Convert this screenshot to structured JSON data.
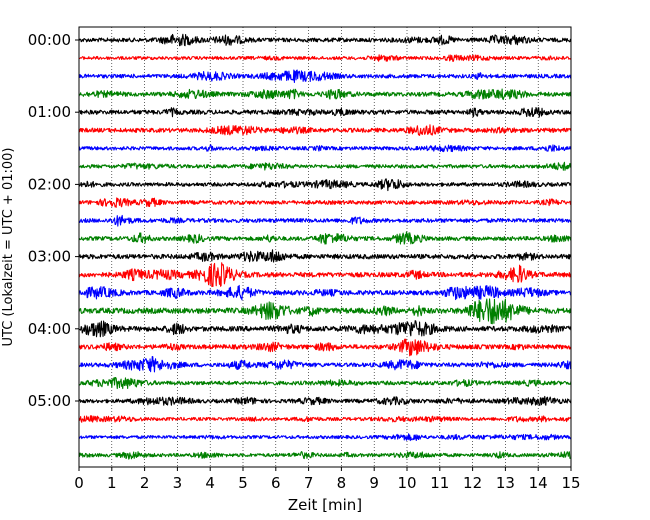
{
  "chart_data": {
    "type": "line",
    "chart_kind": "helicorder",
    "title": "",
    "xlabel": "Zeit  [min]",
    "ylabel": "UTC (Lokalzeit = UTC + 01:00)",
    "xlim": [
      0,
      15
    ],
    "x_ticks": [
      "0",
      "1",
      "2",
      "3",
      "4",
      "5",
      "6",
      "7",
      "8",
      "9",
      "10",
      "11",
      "12",
      "13",
      "14",
      "15"
    ],
    "x_grid": "dotted vertical lines at each minute",
    "y_ticks": [
      {
        "label": "00:00",
        "row": 0
      },
      {
        "label": "01:00",
        "row": 4
      },
      {
        "label": "02:00",
        "row": 8
      },
      {
        "label": "03:00",
        "row": 12
      },
      {
        "label": "04:00",
        "row": 16
      },
      {
        "label": "05:00",
        "row": 20
      }
    ],
    "minutes_per_row": 15,
    "trace_colors": [
      "#000000",
      "#ff0000",
      "#0000ff",
      "#008000"
    ],
    "rows": [
      {
        "start": "00:00",
        "color": "#000000",
        "activity": 0.55
      },
      {
        "start": "00:15",
        "color": "#ff0000",
        "activity": 0.3
      },
      {
        "start": "00:30",
        "color": "#0000ff",
        "activity": 0.5
      },
      {
        "start": "00:45",
        "color": "#008000",
        "activity": 0.6
      },
      {
        "start": "01:00",
        "color": "#000000",
        "activity": 0.65
      },
      {
        "start": "01:15",
        "color": "#ff0000",
        "activity": 0.6
      },
      {
        "start": "01:30",
        "color": "#0000ff",
        "activity": 0.4
      },
      {
        "start": "01:45",
        "color": "#008000",
        "activity": 0.4
      },
      {
        "start": "02:00",
        "color": "#000000",
        "activity": 0.45
      },
      {
        "start": "02:15",
        "color": "#ff0000",
        "activity": 0.5
      },
      {
        "start": "02:30",
        "color": "#0000ff",
        "activity": 0.55
      },
      {
        "start": "02:45",
        "color": "#008000",
        "activity": 0.55
      },
      {
        "start": "03:00",
        "color": "#000000",
        "activity": 0.75
      },
      {
        "start": "03:15",
        "color": "#ff0000",
        "activity": 0.8
      },
      {
        "start": "03:30",
        "color": "#0000ff",
        "activity": 0.75
      },
      {
        "start": "03:45",
        "color": "#008000",
        "activity": 1.0
      },
      {
        "start": "04:00",
        "color": "#000000",
        "activity": 0.85
      },
      {
        "start": "04:15",
        "color": "#ff0000",
        "activity": 0.7
      },
      {
        "start": "04:30",
        "color": "#0000ff",
        "activity": 0.55
      },
      {
        "start": "04:45",
        "color": "#008000",
        "activity": 0.5
      },
      {
        "start": "05:00",
        "color": "#000000",
        "activity": 0.45
      },
      {
        "start": "05:15",
        "color": "#ff0000",
        "activity": 0.3
      },
      {
        "start": "05:30",
        "color": "#0000ff",
        "activity": 0.3
      },
      {
        "start": "05:45",
        "color": "#008000",
        "activity": 0.35
      }
    ]
  }
}
